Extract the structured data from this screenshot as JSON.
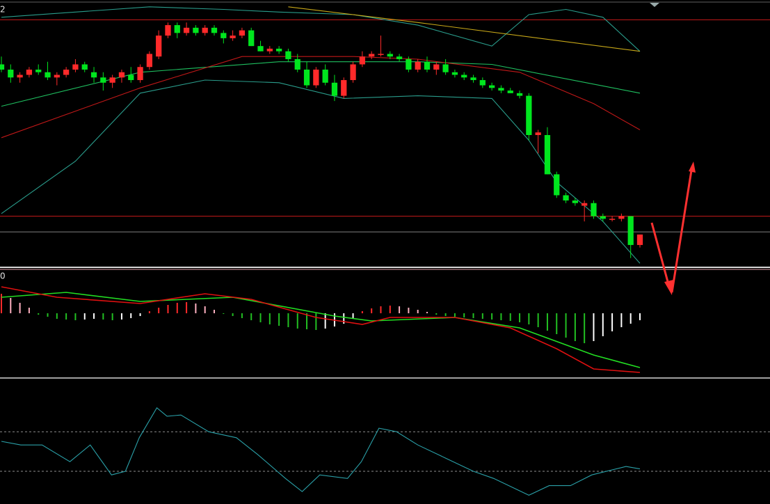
{
  "chart_data": [
    {
      "type": "candlestick",
      "corner_label": "2",
      "up_color": "#ff2a2a",
      "down_color": "#00e61e",
      "ylim": [
        0,
        100
      ],
      "candles": [
        [
          77,
          80,
          74,
          75
        ],
        [
          75,
          77,
          70,
          72
        ],
        [
          72,
          74,
          70,
          73
        ],
        [
          73,
          76,
          72,
          75
        ],
        [
          75,
          77,
          73,
          74
        ],
        [
          74,
          78,
          71,
          72
        ],
        [
          72,
          74,
          69,
          73
        ],
        [
          73,
          76,
          72,
          75
        ],
        [
          75,
          79,
          74,
          77
        ],
        [
          77,
          78,
          74,
          75
        ],
        [
          74,
          76,
          70,
          72
        ],
        [
          72,
          74,
          67,
          70
        ],
        [
          70,
          73,
          68,
          72
        ],
        [
          72,
          75,
          70,
          74
        ],
        [
          73,
          76,
          70,
          71
        ],
        [
          71,
          77,
          70,
          76
        ],
        [
          76,
          82,
          75,
          81
        ],
        [
          80,
          90,
          79,
          88
        ],
        [
          88,
          93,
          87,
          92
        ],
        [
          92,
          93,
          87,
          89
        ],
        [
          89,
          93,
          88,
          91
        ],
        [
          91,
          92,
          88,
          89
        ],
        [
          89,
          92,
          88,
          91
        ],
        [
          91,
          92,
          88,
          89
        ],
        [
          89,
          90,
          85,
          87
        ],
        [
          87,
          90,
          86,
          88
        ],
        [
          88,
          91,
          87,
          90
        ],
        [
          90,
          91,
          84,
          84
        ],
        [
          84,
          86,
          82,
          82
        ],
        [
          82,
          84,
          81,
          83
        ],
        [
          83,
          84,
          81,
          82
        ],
        [
          82,
          83,
          78,
          79
        ],
        [
          79,
          81,
          74,
          75
        ],
        [
          75,
          78,
          68,
          69
        ],
        [
          69,
          76,
          68,
          75
        ],
        [
          75,
          77,
          69,
          70
        ],
        [
          70,
          73,
          63,
          65
        ],
        [
          65,
          72,
          64,
          71
        ],
        [
          71,
          78,
          70,
          77
        ],
        [
          77,
          82,
          76,
          80
        ],
        [
          80,
          82,
          79,
          81
        ],
        [
          81,
          88,
          80,
          81
        ],
        [
          81,
          82,
          79,
          80
        ],
        [
          80,
          81,
          78,
          79
        ],
        [
          79,
          80,
          74,
          75
        ],
        [
          75,
          79,
          74,
          78
        ],
        [
          78,
          80,
          74,
          75
        ],
        [
          75,
          78,
          73,
          77
        ],
        [
          77,
          79,
          73,
          74
        ],
        [
          74,
          75,
          72,
          73
        ],
        [
          73,
          74,
          71,
          72
        ],
        [
          72,
          73,
          70,
          71
        ],
        [
          71,
          72,
          68,
          69
        ],
        [
          69,
          70,
          67,
          68
        ],
        [
          68,
          69,
          66,
          67
        ],
        [
          67,
          68,
          66,
          66
        ],
        [
          66,
          67,
          64,
          65
        ],
        [
          65,
          66,
          48,
          50
        ],
        [
          50,
          52,
          43,
          51
        ],
        [
          50,
          53,
          35,
          35
        ],
        [
          35,
          36,
          26,
          27
        ],
        [
          27,
          28,
          24,
          25
        ],
        [
          25,
          26,
          23,
          24
        ],
        [
          23,
          25,
          17,
          24
        ],
        [
          24,
          25,
          18,
          19
        ],
        [
          19,
          20,
          17,
          18
        ],
        [
          18,
          19,
          17,
          18
        ],
        [
          18,
          20,
          17,
          19
        ],
        [
          19,
          19,
          3,
          8
        ],
        [
          8,
          12,
          7,
          12
        ]
      ],
      "series": [
        {
          "color": "#2a9d8c",
          "x": [
            0,
            8,
            16,
            24,
            30,
            38,
            45,
            53,
            57,
            61,
            65,
            69
          ],
          "values": [
            95,
            97,
            99,
            98,
            97,
            96,
            92,
            84,
            96,
            98,
            95,
            82
          ]
        },
        {
          "color": "#2a9d8c",
          "x": [
            0,
            8,
            15,
            22,
            30,
            37,
            45,
            53,
            57,
            60,
            65,
            69
          ],
          "values": [
            20,
            40,
            66,
            71,
            70,
            64,
            65,
            64,
            48,
            32,
            17,
            1
          ]
        },
        {
          "color": "#1fc060",
          "x": [
            0,
            15,
            30,
            45,
            53,
            69
          ],
          "values": [
            61,
            74,
            78,
            78,
            77,
            66
          ]
        },
        {
          "color": "#c01818",
          "x": [
            0,
            15,
            26,
            38,
            45,
            56,
            64,
            69
          ],
          "values": [
            49,
            68,
            80,
            80,
            79,
            74,
            62,
            52
          ]
        },
        {
          "color": "#c8a818",
          "x": [
            31,
            45,
            69
          ],
          "values": [
            99,
            93,
            82
          ]
        }
      ],
      "hlines": [
        {
          "value": 94,
          "color": "#c01818"
        },
        {
          "value": 19,
          "color": "#c01818"
        },
        {
          "value": 13,
          "color": "#808080"
        }
      ]
    },
    {
      "type": "macd",
      "corner_label": "0",
      "ylim": [
        -9,
        6
      ],
      "histogram": [
        2.8,
        2.2,
        1.5,
        0.8,
        -0.2,
        -0.5,
        -0.8,
        -0.9,
        -1.0,
        -0.9,
        -0.8,
        -0.9,
        -1.0,
        -0.9,
        -0.7,
        -0.4,
        0.3,
        0.8,
        1.2,
        1.5,
        1.6,
        1.4,
        1.0,
        0.5,
        -0.1,
        -0.4,
        -0.7,
        -1.0,
        -1.3,
        -1.6,
        -1.8,
        -2.0,
        -2.2,
        -2.3,
        -2.4,
        -2.2,
        -1.9,
        -1.5,
        -0.8,
        0.3,
        0.7,
        1.0,
        1.1,
        1.0,
        0.8,
        0.5,
        0.2,
        -0.2,
        -0.4,
        -0.5,
        -0.6,
        -0.7,
        -0.8,
        -0.9,
        -1.0,
        -1.1,
        -1.3,
        -1.6,
        -2.0,
        -2.5,
        -3.0,
        -3.5,
        -4.0,
        -4.3,
        -4.0,
        -3.3,
        -2.6,
        -2.0,
        -1.5,
        -1.0
      ],
      "hist_colors": {
        "pos_rising": "#ff2a2a",
        "pos_falling": "#ffb0c0",
        "neg_rising": "#22c022",
        "neg_falling": "#ffffff"
      },
      "series": [
        {
          "color": "#22dd22",
          "x": [
            0,
            7,
            15,
            25,
            36,
            40,
            49,
            56,
            64,
            69
          ],
          "values": [
            2.3,
            3.0,
            1.7,
            2.3,
            -0.4,
            -1.1,
            -0.6,
            -2.1,
            -6.0,
            -7.8
          ]
        },
        {
          "color": "#e01010",
          "x": [
            0,
            6,
            15,
            22,
            27,
            34,
            39,
            42,
            49,
            55,
            60,
            64,
            69
          ],
          "values": [
            3.8,
            2.3,
            1.4,
            2.8,
            2.0,
            -0.6,
            -1.6,
            -0.6,
            -0.6,
            -2.1,
            -5.1,
            -8.0,
            -8.5
          ]
        }
      ]
    },
    {
      "type": "line",
      "ylim": [
        0,
        100
      ],
      "hlines": [
        {
          "value": 58,
          "color": "#909090"
        },
        {
          "value": 25,
          "color": "#909090"
        }
      ],
      "series": [
        {
          "color": "#2aa0a8",
          "x": [
            0,
            2.1,
            4.4,
            7.4,
            9.6,
            11.9,
            13.4,
            14.9,
            16.8,
            17.9,
            19.4,
            22.4,
            25.4,
            27.7,
            30.7,
            32.5,
            34.4,
            37.4,
            38.9,
            40.8,
            42.7,
            45,
            48,
            51,
            53.2,
            57,
            59.2,
            61.5,
            63.8,
            67.5,
            69
          ],
          "values": [
            50,
            47,
            47,
            33,
            47,
            22,
            25,
            53,
            78,
            71,
            72,
            58,
            53,
            39,
            19,
            8,
            22,
            19,
            33,
            61,
            58,
            47,
            36,
            25,
            19,
            5,
            13,
            13,
            22,
            29,
            27
          ]
        }
      ]
    }
  ]
}
